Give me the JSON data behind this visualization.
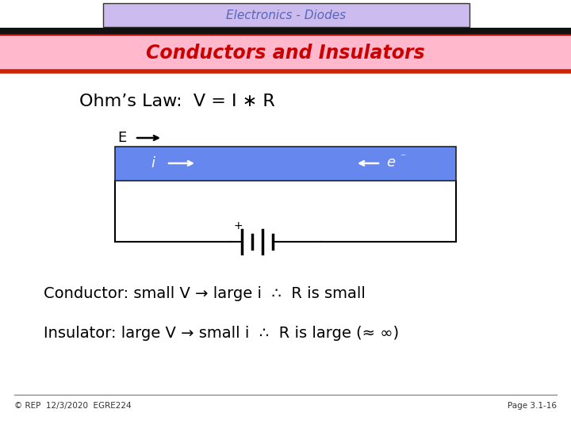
{
  "title_box_text": "Electronics - Diodes",
  "title_box_color": "#ccbbee",
  "title_box_border": "#000000",
  "subtitle_box_text": "Conductors and Insulators",
  "subtitle_box_color": "#ffb8cc",
  "subtitle_text_color": "#cc0000",
  "ohms_law_text": "Ohm’s Law:  V = I ∗ R",
  "conductor_text": "Conductor: small V → large i  ∴  R is small",
  "insulator_text": "Insulator: large V → small i  ∴  R is large (≈ ∞)",
  "footer_left": "© REP  12/3/2020  EGRE224",
  "footer_right": "Page 3.1-16",
  "bg_color": "#ffffff",
  "conductor_box_color": "#6688ee",
  "title_text_color": "#5566bb"
}
